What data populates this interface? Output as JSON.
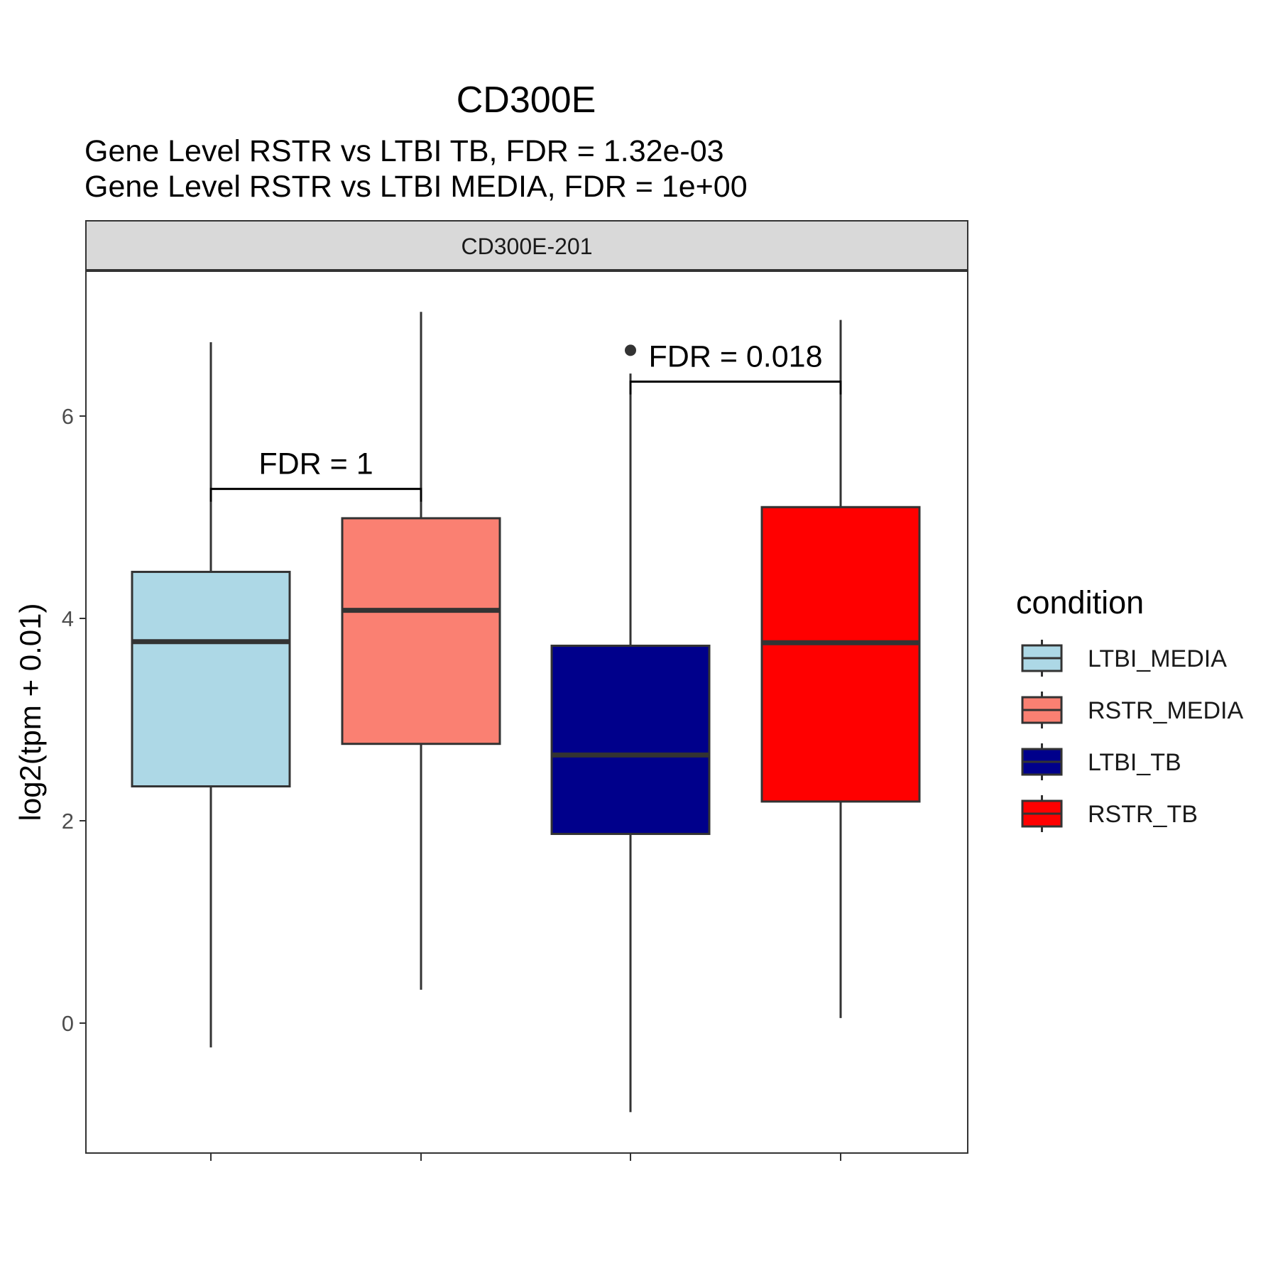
{
  "chart_data": {
    "type": "box",
    "title": "CD300E",
    "subtitle_lines": [
      "Gene Level RSTR vs LTBI TB, FDR =  1.32e-03",
      "Gene Level RSTR vs LTBI MEDIA, FDR =  1e+00"
    ],
    "facet_label": "CD300E-201",
    "ylabel": "log2(tpm + 0.01)",
    "xlabel": "",
    "ylim": [
      -1.3,
      7.4
    ],
    "yticks": [
      0,
      2,
      4,
      6
    ],
    "grid": false,
    "legend": {
      "title": "condition",
      "position": "right"
    },
    "series": [
      {
        "name": "LTBI_MEDIA",
        "color": "#ADD8E6",
        "whisker_low": -0.24,
        "q1": 2.34,
        "median": 3.77,
        "q3": 4.46,
        "whisker_high": 6.73,
        "outliers": []
      },
      {
        "name": "RSTR_MEDIA",
        "color": "#FA8072",
        "whisker_low": 0.33,
        "q1": 2.76,
        "median": 4.08,
        "q3": 4.99,
        "whisker_high": 7.03,
        "outliers": []
      },
      {
        "name": "LTBI_TB",
        "color": "#00008B",
        "whisker_low": -0.88,
        "q1": 1.87,
        "median": 2.65,
        "q3": 3.73,
        "whisker_high": 6.42,
        "outliers": [
          6.65
        ]
      },
      {
        "name": "RSTR_TB",
        "color": "#FF0000",
        "whisker_low": 0.05,
        "q1": 2.19,
        "median": 3.76,
        "q3": 5.1,
        "whisker_high": 6.95,
        "outliers": []
      }
    ],
    "annotations": [
      {
        "from": 0,
        "to": 1,
        "text": "FDR =  1",
        "y": 5.28
      },
      {
        "from": 2,
        "to": 3,
        "text": "FDR =  0.018",
        "y": 6.34
      }
    ]
  }
}
